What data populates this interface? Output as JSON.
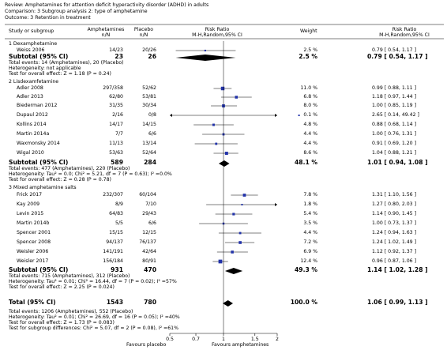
{
  "review_line": "Review:  Amphetamines for attention deficit hyperactivity disorder (ADHD) in adults",
  "comparison_line": "Comparison:  3 Subgroup analysis 2: type of amphetamine",
  "outcome_line": "Outcome:  3 Retention in treatment",
  "columns": {
    "study": "Study or subgroup",
    "exp": "Amphetamines",
    "exp_sub": "n/N",
    "ctl": "Placebo",
    "ctl_sub": "n/N",
    "rr": "Risk Ratio",
    "rr_sub": "M-H,Random,95% CI",
    "weight": "Weight",
    "rr2": "Risk Ratio",
    "rr2_sub": "M-H,Random,95% CI"
  },
  "axis": {
    "ticks": [
      "0.5",
      "0.7",
      "1",
      "1.5",
      "2"
    ],
    "left_label": "Favours placebo",
    "right_label": "Favours amphetamines"
  },
  "chart_data": {
    "type": "forest",
    "scale": "log",
    "xlim": [
      0.5,
      2
    ],
    "reference_line": 1,
    "groups": [
      {
        "heading": "1 Dexamphetamine",
        "studies": [
          {
            "name": "Weiss 2006",
            "exp": "14/23",
            "ctl": "20/26",
            "weight": "2.5 %",
            "ci_text": "0.79 [ 0.54, 1.17 ]",
            "rr": 0.79,
            "lo": 0.54,
            "hi": 1.17,
            "w": 2.5
          }
        ],
        "subtotal": {
          "label": "Subtotal (95% CI)",
          "exp": "23",
          "ctl": "26",
          "weight": "2.5 %",
          "ci_text": "0.79 [ 0.54, 1.17 ]",
          "rr": 0.79,
          "lo": 0.54,
          "hi": 1.17
        },
        "info": [
          "Total events: 14 (Amphetamines), 20 (Placebo)",
          "Heterogeneity: not applicable",
          "Test for overall effect: Z = 1.18 (P = 0.24)"
        ]
      },
      {
        "heading": "2 Lisdexamfetamine",
        "studies": [
          {
            "name": "Adler 2008",
            "exp": "297/358",
            "ctl": "52/62",
            "weight": "11.0 %",
            "ci_text": "0.99 [ 0.88, 1.11 ]",
            "rr": 0.99,
            "lo": 0.88,
            "hi": 1.11,
            "w": 11.0
          },
          {
            "name": "Adler 2013",
            "exp": "62/80",
            "ctl": "53/81",
            "weight": "6.8 %",
            "ci_text": "1.18 [ 0.97, 1.44 ]",
            "rr": 1.18,
            "lo": 0.97,
            "hi": 1.44,
            "w": 6.8
          },
          {
            "name": "Biederman 2012",
            "exp": "31/35",
            "ctl": "30/34",
            "weight": "8.0 %",
            "ci_text": "1.00 [ 0.85, 1.19 ]",
            "rr": 1.0,
            "lo": 0.85,
            "hi": 1.19,
            "w": 8.0
          },
          {
            "name": "Dupaul 2012",
            "exp": "2/16",
            "ctl": "0/8",
            "weight": "0.1 %",
            "ci_text": "2.65 [ 0.14, 49.42 ]",
            "rr": 2.65,
            "lo": 0.14,
            "hi": 49.42,
            "w": 0.1
          },
          {
            "name": "Kollins 2014",
            "exp": "14/17",
            "ctl": "14/15",
            "weight": "4.8 %",
            "ci_text": "0.88 [ 0.68, 1.14 ]",
            "rr": 0.88,
            "lo": 0.68,
            "hi": 1.14,
            "w": 4.8
          },
          {
            "name": "Martin 2014a",
            "exp": "7/7",
            "ctl": "6/6",
            "weight": "4.4 %",
            "ci_text": "1.00 [ 0.76, 1.31 ]",
            "rr": 1.0,
            "lo": 0.76,
            "hi": 1.31,
            "w": 4.4
          },
          {
            "name": "Waxmonsky 2014",
            "exp": "11/13",
            "ctl": "13/14",
            "weight": "4.4 %",
            "ci_text": "0.91 [ 0.69, 1.20 ]",
            "rr": 0.91,
            "lo": 0.69,
            "hi": 1.2,
            "w": 4.4
          },
          {
            "name": "Wigal 2010",
            "exp": "53/63",
            "ctl": "52/64",
            "weight": "8.6 %",
            "ci_text": "1.04 [ 0.88, 1.21 ]",
            "rr": 1.04,
            "lo": 0.88,
            "hi": 1.21,
            "w": 8.6
          }
        ],
        "subtotal": {
          "label": "Subtotal (95% CI)",
          "exp": "589",
          "ctl": "284",
          "weight": "48.1 %",
          "ci_text": "1.01 [ 0.94, 1.08 ]",
          "rr": 1.01,
          "lo": 0.94,
          "hi": 1.08
        },
        "info": [
          "Total events: 477 (Amphetamines), 220 (Placebo)",
          "Heterogeneity: Tau² = 0.0; Chi² = 5.21, df = 7 (P = 0.63); I² =0.0%",
          "Test for overall effect: Z = 0.28 (P = 0.78)"
        ]
      },
      {
        "heading": "3 Mixed amphetamine salts",
        "studies": [
          {
            "name": "Frick 2017",
            "exp": "232/307",
            "ctl": "60/104",
            "weight": "7.8 %",
            "ci_text": "1.31 [ 1.10, 1.56 ]",
            "rr": 1.31,
            "lo": 1.1,
            "hi": 1.56,
            "w": 7.8
          },
          {
            "name": "Kay 2009",
            "exp": "8/9",
            "ctl": "7/10",
            "weight": "1.8 %",
            "ci_text": "1.27 [ 0.80, 2.03 ]",
            "rr": 1.27,
            "lo": 0.8,
            "hi": 2.03,
            "w": 1.8
          },
          {
            "name": "Levin 2015",
            "exp": "64/83",
            "ctl": "29/43",
            "weight": "5.4 %",
            "ci_text": "1.14 [ 0.90, 1.45 ]",
            "rr": 1.14,
            "lo": 0.9,
            "hi": 1.45,
            "w": 5.4
          },
          {
            "name": "Martin 2014b",
            "exp": "5/5",
            "ctl": "6/6",
            "weight": "3.5 %",
            "ci_text": "1.00 [ 0.73, 1.37 ]",
            "rr": 1.0,
            "lo": 0.73,
            "hi": 1.37,
            "w": 3.5
          },
          {
            "name": "Spencer 2001",
            "exp": "15/15",
            "ctl": "12/15",
            "weight": "4.4 %",
            "ci_text": "1.24 [ 0.94, 1.63 ]",
            "rr": 1.24,
            "lo": 0.94,
            "hi": 1.63,
            "w": 4.4
          },
          {
            "name": "Spencer 2008",
            "exp": "94/137",
            "ctl": "76/137",
            "weight": "7.2 %",
            "ci_text": "1.24 [ 1.02, 1.49 ]",
            "rr": 1.24,
            "lo": 1.02,
            "hi": 1.49,
            "w": 7.2
          },
          {
            "name": "Weisler 2006",
            "exp": "141/191",
            "ctl": "42/64",
            "weight": "6.9 %",
            "ci_text": "1.12 [ 0.92, 1.37 ]",
            "rr": 1.12,
            "lo": 0.92,
            "hi": 1.37,
            "w": 6.9
          },
          {
            "name": "Weisler 2017",
            "exp": "156/184",
            "ctl": "80/91",
            "weight": "12.4 %",
            "ci_text": "0.96 [ 0.87, 1.06 ]",
            "rr": 0.96,
            "lo": 0.87,
            "hi": 1.06,
            "w": 12.4
          }
        ],
        "subtotal": {
          "label": "Subtotal (95% CI)",
          "exp": "931",
          "ctl": "470",
          "weight": "49.3 %",
          "ci_text": "1.14 [ 1.02, 1.28 ]",
          "rr": 1.14,
          "lo": 1.02,
          "hi": 1.28
        },
        "info": [
          "Total events: 715 (Amphetamines), 312 (Placebo)",
          "Heterogeneity: Tau² = 0.01; Chi² = 16.44, df = 7 (P = 0.02); I² =57%",
          "Test for overall effect: Z = 2.25 (P = 0.024)"
        ]
      }
    ],
    "total": {
      "label": "Total (95% CI)",
      "exp": "1543",
      "ctl": "780",
      "weight": "100.0 %",
      "ci_text": "1.06 [ 0.99, 1.13 ]",
      "rr": 1.06,
      "lo": 0.99,
      "hi": 1.13
    },
    "total_info": [
      "Total events: 1206 (Amphetamines), 552 (Placebo)",
      "Heterogeneity: Tau² = 0.01; Chi² = 26.69, df = 16 (P = 0.05); I² =40%",
      "Test for overall effect: Z = 1.73 (P = 0.083)",
      "Test for subgroup differences: Chi² = 5.07, df = 2 (P = 0.08), I² =61%"
    ]
  }
}
